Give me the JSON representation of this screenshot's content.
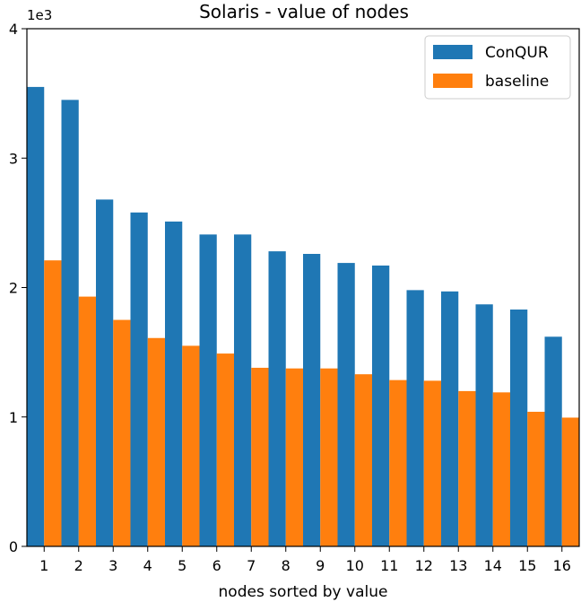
{
  "chart_data": {
    "type": "bar",
    "title": "Solaris - value of nodes",
    "xlabel": "nodes sorted by value",
    "ylabel": "",
    "y_scale_label": "1e3",
    "categories": [
      "1",
      "2",
      "3",
      "4",
      "5",
      "6",
      "7",
      "8",
      "9",
      "10",
      "11",
      "12",
      "13",
      "14",
      "15",
      "16"
    ],
    "ylim": [
      0,
      4000
    ],
    "yticks": [
      0,
      1000,
      2000,
      3000,
      4000
    ],
    "ytick_labels": [
      "0",
      "1",
      "2",
      "3",
      "4"
    ],
    "series": [
      {
        "name": "ConQUR",
        "color": "#1f77b4",
        "values": [
          3550,
          3450,
          2680,
          2580,
          2510,
          2410,
          2410,
          2280,
          2260,
          2190,
          2170,
          1980,
          1970,
          1870,
          1830,
          1620
        ]
      },
      {
        "name": "baseline",
        "color": "#ff7f0e",
        "values": [
          2210,
          1930,
          1750,
          1610,
          1550,
          1490,
          1380,
          1375,
          1375,
          1330,
          1285,
          1280,
          1200,
          1190,
          1040,
          995
        ]
      }
    ],
    "legend_position": "top-right",
    "grid": false
  }
}
